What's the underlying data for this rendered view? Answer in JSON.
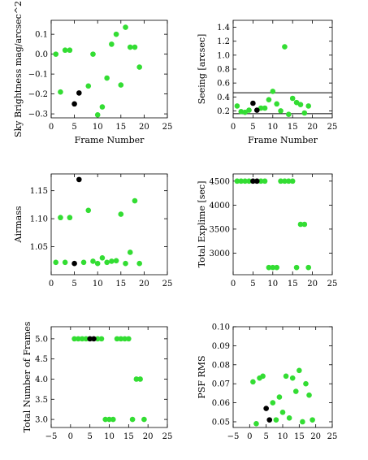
{
  "colors": {
    "green": "#33dd33",
    "black": "#000000",
    "line": "#000000",
    "background": "#ffffff"
  },
  "chart_data": [
    {
      "type": "scatter",
      "id": "sky",
      "xlabel": "Frame Number",
      "ylabel": "Sky Brightness mag/arcsec^2",
      "xlim": [
        0,
        25
      ],
      "ylim": [
        -0.32,
        0.17
      ],
      "xticks": [
        0,
        5,
        10,
        15,
        20,
        25
      ],
      "yticks": [
        -0.3,
        -0.2,
        -0.1,
        0.0,
        0.1
      ],
      "ytick_labels": [
        "−0.3",
        "−0.2",
        "−0.1",
        "0.0",
        "0.1"
      ],
      "series": [
        {
          "color": "green",
          "x": [
            1,
            2,
            3,
            4,
            8,
            9,
            10,
            11,
            12,
            13,
            14,
            15,
            16,
            17,
            18,
            19
          ],
          "y": [
            0.0,
            -0.19,
            0.02,
            0.02,
            -0.16,
            0.0,
            -0.305,
            -0.265,
            -0.12,
            0.05,
            0.1,
            -0.155,
            0.135,
            0.035,
            0.035,
            -0.065
          ]
        },
        {
          "color": "black",
          "x": [
            5,
            6
          ],
          "y": [
            -0.25,
            -0.195
          ]
        }
      ]
    },
    {
      "type": "scatter",
      "id": "seeing",
      "xlabel": "Frame Number",
      "ylabel": "Seeing [arcsec]",
      "xlim": [
        0,
        25
      ],
      "ylim": [
        0.1,
        1.5
      ],
      "xticks": [
        0,
        5,
        10,
        15,
        20,
        25
      ],
      "yticks": [
        0.2,
        0.4,
        0.6,
        0.8,
        1.0,
        1.2,
        1.4
      ],
      "ytick_labels": [
        "0.2",
        "0.4",
        "0.6",
        "0.8",
        "1.0",
        "1.2",
        "1.4"
      ],
      "hlines": [
        0.46,
        0.16
      ],
      "series": [
        {
          "color": "green",
          "x": [
            1,
            2,
            3,
            4,
            7,
            8,
            9,
            10,
            11,
            12,
            13,
            14,
            15,
            16,
            17,
            18,
            19
          ],
          "y": [
            0.27,
            0.19,
            0.18,
            0.21,
            0.24,
            0.24,
            0.36,
            0.48,
            0.3,
            0.2,
            1.12,
            0.15,
            0.38,
            0.32,
            0.29,
            0.17,
            0.27
          ]
        },
        {
          "color": "black",
          "x": [
            5,
            6
          ],
          "y": [
            0.31,
            0.21
          ]
        }
      ]
    },
    {
      "type": "scatter",
      "id": "airmass",
      "xlabel": "",
      "ylabel": "Airmass",
      "xlim": [
        0,
        25
      ],
      "ylim": [
        1.0,
        1.18
      ],
      "xticks": [
        0,
        5,
        10,
        15,
        20,
        25
      ],
      "yticks": [
        1.05,
        1.1,
        1.15
      ],
      "ytick_labels": [
        "1.05",
        "1.10",
        "1.15"
      ],
      "series": [
        {
          "color": "green",
          "x": [
            1,
            2,
            3,
            4,
            7,
            8,
            9,
            10,
            11,
            12,
            13,
            14,
            15,
            16,
            17,
            18,
            19
          ],
          "y": [
            1.022,
            1.102,
            1.022,
            1.102,
            1.022,
            1.115,
            1.024,
            1.02,
            1.03,
            1.022,
            1.024,
            1.025,
            1.108,
            1.02,
            1.04,
            1.132,
            1.02
          ]
        },
        {
          "color": "black",
          "x": [
            5,
            6
          ],
          "y": [
            1.02,
            1.17
          ]
        }
      ]
    },
    {
      "type": "scatter",
      "id": "exptime",
      "xlabel": "",
      "ylabel": "Total Explime [sec]",
      "xlim": [
        0,
        25
      ],
      "ylim": [
        2550,
        4650
      ],
      "xticks": [
        0,
        5,
        10,
        15,
        20,
        25
      ],
      "yticks": [
        3000,
        3500,
        4000,
        4500
      ],
      "ytick_labels": [
        "3000",
        "3500",
        "4000",
        "4500"
      ],
      "series": [
        {
          "color": "green",
          "x": [
            1,
            2,
            3,
            4,
            7,
            8,
            9,
            10,
            11,
            12,
            13,
            14,
            15,
            16,
            17,
            18,
            19
          ],
          "y": [
            4500,
            4500,
            4500,
            4500,
            4500,
            4500,
            2700,
            2700,
            2700,
            4500,
            4500,
            4500,
            4500,
            2700,
            3600,
            3600,
            2700
          ]
        },
        {
          "color": "black",
          "x": [
            5,
            6
          ],
          "y": [
            4500,
            4500
          ]
        }
      ]
    },
    {
      "type": "scatter",
      "id": "nframes",
      "xlabel": "",
      "ylabel": "Total Number of Frames",
      "xlim": [
        -5,
        25
      ],
      "ylim": [
        2.8,
        5.3
      ],
      "xticks": [
        -5,
        0,
        5,
        10,
        15,
        20,
        25
      ],
      "xtick_labels": [
        "−5",
        "0",
        "5",
        "10",
        "15",
        "20",
        "25"
      ],
      "yticks": [
        3.0,
        3.5,
        4.0,
        4.5,
        5.0
      ],
      "ytick_labels": [
        "3.0",
        "3.5",
        "4.0",
        "4.5",
        "5.0"
      ],
      "series": [
        {
          "color": "green",
          "x": [
            1,
            2,
            3,
            4,
            7,
            8,
            9,
            10,
            11,
            12,
            13,
            14,
            15,
            16,
            17,
            18,
            19
          ],
          "y": [
            5,
            5,
            5,
            5,
            5,
            5,
            3,
            3,
            3,
            5,
            5,
            5,
            5,
            3,
            4,
            4,
            3
          ]
        },
        {
          "color": "black",
          "x": [
            5,
            6
          ],
          "y": [
            5,
            5
          ]
        }
      ]
    },
    {
      "type": "scatter",
      "id": "psf",
      "xlabel": "",
      "ylabel": "PSF RMS",
      "xlim": [
        -5,
        25
      ],
      "ylim": [
        0.047,
        0.1
      ],
      "xticks": [
        -5,
        0,
        5,
        10,
        15,
        20,
        25
      ],
      "xtick_labels": [
        "−5",
        "0",
        "5",
        "10",
        "15",
        "20",
        "25"
      ],
      "yticks": [
        0.05,
        0.06,
        0.07,
        0.08,
        0.09,
        0.1
      ],
      "ytick_labels": [
        "0.05",
        "0.06",
        "0.07",
        "0.08",
        "0.09",
        "0.10"
      ],
      "series": [
        {
          "color": "green",
          "x": [
            1,
            2,
            3,
            4,
            7,
            8,
            9,
            10,
            11,
            12,
            13,
            14,
            15,
            16,
            17,
            18,
            19
          ],
          "y": [
            0.071,
            0.049,
            0.073,
            0.074,
            0.06,
            0.051,
            0.063,
            0.055,
            0.074,
            0.052,
            0.073,
            0.066,
            0.077,
            0.05,
            0.07,
            0.064,
            0.051
          ]
        },
        {
          "color": "black",
          "x": [
            5,
            6
          ],
          "y": [
            0.057,
            0.051
          ]
        }
      ]
    }
  ]
}
